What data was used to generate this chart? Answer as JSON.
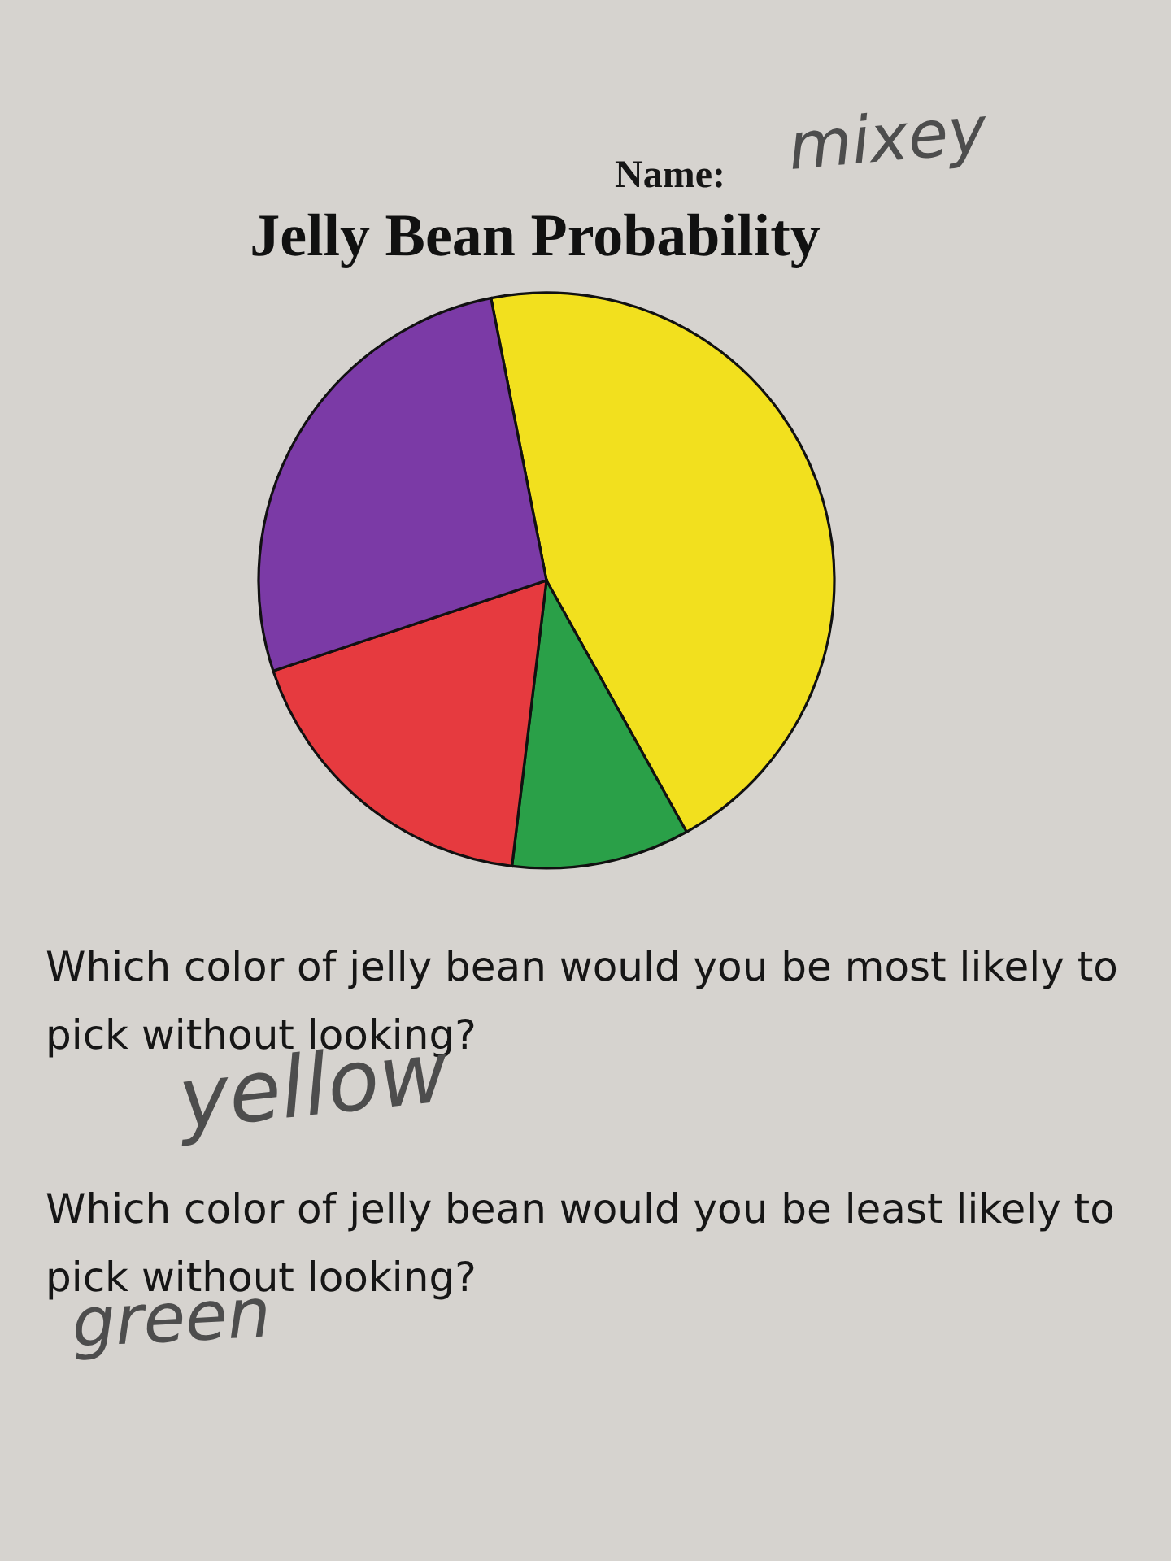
{
  "chart_data": {
    "type": "pie",
    "title": "Jelly Bean Probability",
    "categories": [
      null,
      null,
      null,
      null
    ],
    "values": [
      45,
      10,
      18,
      27
    ],
    "colors": [
      "#f2e01e",
      "#2aa048",
      "#e63a3f",
      "#7b3aa6"
    ],
    "annotations": [
      "Name:",
      "mixey",
      "Which color of jelly bean would you be most likely to pick without looking?",
      "yellow",
      "Which color of jelly bean would you be least likely to pick without looking?",
      "green"
    ]
  }
}
